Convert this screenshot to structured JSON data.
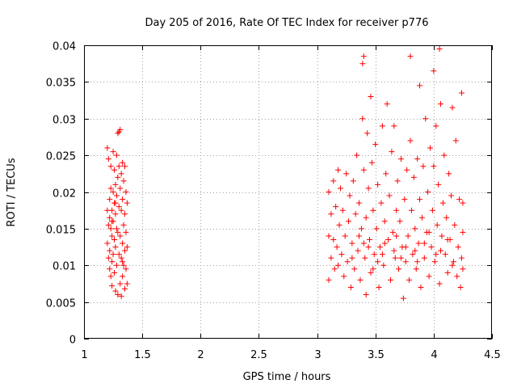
{
  "chart_data": {
    "type": "scatter",
    "title": "Day 205 of 2016, Rate Of TEC Index for receiver p776",
    "xlabel": "GPS time / hours",
    "ylabel": "ROTI / TECUs",
    "xlim": [
      1,
      4.5
    ],
    "ylim": [
      0,
      0.04
    ],
    "xticks": [
      1,
      1.5,
      2,
      2.5,
      3,
      3.5,
      4,
      4.5
    ],
    "xtick_labels": [
      "1",
      "1.5",
      "2",
      "2.5",
      "3",
      "3.5",
      "4",
      "4.5"
    ],
    "yticks": [
      0,
      0.005,
      0.01,
      0.015,
      0.02,
      0.025,
      0.03,
      0.035,
      0.04
    ],
    "ytick_labels": [
      "0",
      "0.005",
      "0.01",
      "0.015",
      "0.02",
      "0.025",
      "0.03",
      "0.035",
      "0.04"
    ],
    "grid": true,
    "marker": "+",
    "color": "#ff0000",
    "series": [
      {
        "name": "ROTI",
        "points": [
          [
            1.2,
            0.026
          ],
          [
            1.2,
            0.0175
          ],
          [
            1.2,
            0.013
          ],
          [
            1.21,
            0.0155
          ],
          [
            1.21,
            0.011
          ],
          [
            1.21,
            0.0245
          ],
          [
            1.22,
            0.019
          ],
          [
            1.22,
            0.0165
          ],
          [
            1.22,
            0.012
          ],
          [
            1.22,
            0.0095
          ],
          [
            1.23,
            0.0205
          ],
          [
            1.23,
            0.015
          ],
          [
            1.23,
            0.0085
          ],
          [
            1.23,
            0.0235
          ],
          [
            1.24,
            0.0175
          ],
          [
            1.24,
            0.014
          ],
          [
            1.24,
            0.0105
          ],
          [
            1.24,
            0.0072
          ],
          [
            1.25,
            0.0255
          ],
          [
            1.25,
            0.02
          ],
          [
            1.25,
            0.016
          ],
          [
            1.25,
            0.0115
          ],
          [
            1.26,
            0.023
          ],
          [
            1.26,
            0.0185
          ],
          [
            1.26,
            0.0135
          ],
          [
            1.26,
            0.009
          ],
          [
            1.27,
            0.021
          ],
          [
            1.27,
            0.017
          ],
          [
            1.27,
            0.0125
          ],
          [
            1.27,
            0.0065
          ],
          [
            1.28,
            0.025
          ],
          [
            1.28,
            0.0195
          ],
          [
            1.28,
            0.015
          ],
          [
            1.28,
            0.01
          ],
          [
            1.29,
            0.028
          ],
          [
            1.29,
            0.022
          ],
          [
            1.29,
            0.0145
          ],
          [
            1.29,
            0.006
          ],
          [
            1.3,
            0.0282
          ],
          [
            1.3,
            0.0235
          ],
          [
            1.3,
            0.018
          ],
          [
            1.3,
            0.0115
          ],
          [
            1.31,
            0.0285
          ],
          [
            1.31,
            0.0205
          ],
          [
            1.31,
            0.014
          ],
          [
            1.31,
            0.0075
          ],
          [
            1.32,
            0.0225
          ],
          [
            1.32,
            0.0175
          ],
          [
            1.32,
            0.011
          ],
          [
            1.32,
            0.0058
          ],
          [
            1.33,
            0.024
          ],
          [
            1.33,
            0.019
          ],
          [
            1.33,
            0.013
          ],
          [
            1.33,
            0.0085
          ],
          [
            1.34,
            0.0215
          ],
          [
            1.34,
            0.0155
          ],
          [
            1.34,
            0.01
          ],
          [
            1.35,
            0.0235
          ],
          [
            1.35,
            0.017
          ],
          [
            1.35,
            0.012
          ],
          [
            1.35,
            0.0068
          ],
          [
            1.36,
            0.02
          ],
          [
            1.36,
            0.0145
          ],
          [
            1.36,
            0.0095
          ],
          [
            1.37,
            0.0185
          ],
          [
            1.37,
            0.0125
          ],
          [
            1.37,
            0.0075
          ],
          [
            1.27,
            0.0185
          ],
          [
            1.24,
            0.016
          ],
          [
            1.33,
            0.0105
          ],
          [
            3.1,
            0.02
          ],
          [
            3.1,
            0.014
          ],
          [
            3.1,
            0.008
          ],
          [
            3.12,
            0.017
          ],
          [
            3.12,
            0.011
          ],
          [
            3.14,
            0.0215
          ],
          [
            3.14,
            0.0135
          ],
          [
            3.15,
            0.0095
          ],
          [
            3.16,
            0.018
          ],
          [
            3.17,
            0.0125
          ],
          [
            3.18,
            0.023
          ],
          [
            3.18,
            0.01
          ],
          [
            3.19,
            0.0155
          ],
          [
            3.2,
            0.0205
          ],
          [
            3.21,
            0.0115
          ],
          [
            3.22,
            0.0175
          ],
          [
            3.23,
            0.0085
          ],
          [
            3.24,
            0.014
          ],
          [
            3.25,
            0.0225
          ],
          [
            3.26,
            0.0105
          ],
          [
            3.27,
            0.016
          ],
          [
            3.28,
            0.0195
          ],
          [
            3.29,
            0.007
          ],
          [
            3.3,
            0.013
          ],
          [
            3.31,
            0.0215
          ],
          [
            3.32,
            0.0095
          ],
          [
            3.33,
            0.017
          ],
          [
            3.34,
            0.025
          ],
          [
            3.35,
            0.012
          ],
          [
            3.36,
            0.0185
          ],
          [
            3.37,
            0.008
          ],
          [
            3.38,
            0.015
          ],
          [
            3.39,
            0.0375
          ],
          [
            3.39,
            0.03
          ],
          [
            3.4,
            0.0385
          ],
          [
            3.4,
            0.023
          ],
          [
            3.41,
            0.011
          ],
          [
            3.42,
            0.0165
          ],
          [
            3.42,
            0.006
          ],
          [
            3.43,
            0.028
          ],
          [
            3.44,
            0.0205
          ],
          [
            3.45,
            0.0135
          ],
          [
            3.46,
            0.033
          ],
          [
            3.46,
            0.009
          ],
          [
            3.47,
            0.024
          ],
          [
            3.48,
            0.0175
          ],
          [
            3.49,
            0.0115
          ],
          [
            3.5,
            0.0265
          ],
          [
            3.51,
            0.015
          ],
          [
            3.52,
            0.021
          ],
          [
            3.53,
            0.007
          ],
          [
            3.54,
            0.0125
          ],
          [
            3.55,
            0.0185
          ],
          [
            3.56,
            0.029
          ],
          [
            3.57,
            0.01
          ],
          [
            3.58,
            0.016
          ],
          [
            3.59,
            0.0225
          ],
          [
            3.6,
            0.032
          ],
          [
            3.61,
            0.0135
          ],
          [
            3.62,
            0.0195
          ],
          [
            3.63,
            0.008
          ],
          [
            3.64,
            0.0255
          ],
          [
            3.65,
            0.0145
          ],
          [
            3.66,
            0.029
          ],
          [
            3.67,
            0.011
          ],
          [
            3.68,
            0.0175
          ],
          [
            3.69,
            0.0215
          ],
          [
            3.7,
            0.0095
          ],
          [
            3.71,
            0.016
          ],
          [
            3.72,
            0.0245
          ],
          [
            3.73,
            0.0125
          ],
          [
            3.74,
            0.0055
          ],
          [
            3.75,
            0.019
          ],
          [
            3.76,
            0.0105
          ],
          [
            3.77,
            0.023
          ],
          [
            3.78,
            0.014
          ],
          [
            3.79,
            0.008
          ],
          [
            3.8,
            0.0385
          ],
          [
            3.8,
            0.027
          ],
          [
            3.81,
            0.0175
          ],
          [
            3.82,
            0.0115
          ],
          [
            3.83,
            0.022
          ],
          [
            3.84,
            0.015
          ],
          [
            3.85,
            0.0095
          ],
          [
            3.86,
            0.0245
          ],
          [
            3.87,
            0.013
          ],
          [
            3.88,
            0.0345
          ],
          [
            3.88,
            0.019
          ],
          [
            3.89,
            0.007
          ],
          [
            3.9,
            0.0165
          ],
          [
            3.91,
            0.0235
          ],
          [
            3.92,
            0.011
          ],
          [
            3.93,
            0.03
          ],
          [
            3.94,
            0.0145
          ],
          [
            3.95,
            0.02
          ],
          [
            3.96,
            0.0085
          ],
          [
            3.97,
            0.026
          ],
          [
            3.98,
            0.0125
          ],
          [
            3.99,
            0.0175
          ],
          [
            4.0,
            0.0365
          ],
          [
            4.0,
            0.0235
          ],
          [
            4.01,
            0.0105
          ],
          [
            4.02,
            0.029
          ],
          [
            4.03,
            0.0155
          ],
          [
            4.04,
            0.021
          ],
          [
            4.05,
            0.0395
          ],
          [
            4.05,
            0.0075
          ],
          [
            4.06,
            0.032
          ],
          [
            4.07,
            0.014
          ],
          [
            4.08,
            0.0185
          ],
          [
            4.09,
            0.025
          ],
          [
            4.1,
            0.0115
          ],
          [
            4.11,
            0.0165
          ],
          [
            4.12,
            0.009
          ],
          [
            4.13,
            0.0225
          ],
          [
            4.14,
            0.0135
          ],
          [
            4.15,
            0.0195
          ],
          [
            4.16,
            0.0315
          ],
          [
            4.17,
            0.0105
          ],
          [
            4.18,
            0.0155
          ],
          [
            4.19,
            0.027
          ],
          [
            4.2,
            0.0085
          ],
          [
            4.21,
            0.0125
          ],
          [
            4.22,
            0.019
          ],
          [
            4.23,
            0.007
          ],
          [
            4.24,
            0.011
          ],
          [
            4.24,
            0.0335
          ],
          [
            4.25,
            0.0095
          ],
          [
            4.25,
            0.0145
          ],
          [
            4.25,
            0.0185
          ],
          [
            3.44,
            0.0125
          ],
          [
            3.52,
            0.0105
          ],
          [
            3.58,
            0.013
          ],
          [
            3.66,
            0.012
          ],
          [
            3.72,
            0.011
          ],
          [
            3.84,
            0.012
          ],
          [
            3.92,
            0.013
          ],
          [
            4.02,
            0.0115
          ],
          [
            4.12,
            0.0135
          ],
          [
            3.36,
            0.014
          ],
          [
            3.48,
            0.0095
          ],
          [
            3.56,
            0.0115
          ],
          [
            3.68,
            0.014
          ],
          [
            3.76,
            0.0125
          ],
          [
            3.86,
            0.0105
          ],
          [
            3.96,
            0.0145
          ],
          [
            4.06,
            0.012
          ],
          [
            4.16,
            0.01
          ],
          [
            3.3,
            0.011
          ],
          [
            3.4,
            0.013
          ]
        ]
      }
    ]
  }
}
